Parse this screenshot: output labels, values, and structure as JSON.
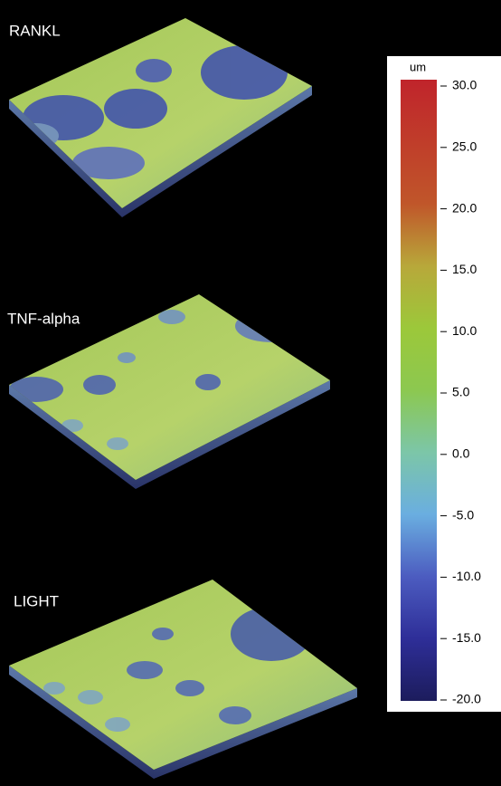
{
  "panels": [
    {
      "label": "RANKL"
    },
    {
      "label": "TNF-alpha"
    },
    {
      "label": "LIGHT"
    }
  ],
  "colorbar": {
    "unit": "um",
    "lim": [
      -20,
      30
    ],
    "ticks": [
      {
        "value": 30,
        "label": "30.0"
      },
      {
        "value": 25,
        "label": "25.0"
      },
      {
        "value": 20,
        "label": "20.0"
      },
      {
        "value": 15,
        "label": "15.0"
      },
      {
        "value": 10,
        "label": "10.0"
      },
      {
        "value": 5,
        "label": "5.0"
      },
      {
        "value": 0,
        "label": "0.0"
      },
      {
        "value": -5,
        "label": "-5.0"
      },
      {
        "value": -10,
        "label": "-10.0"
      },
      {
        "value": -15,
        "label": "-15.0"
      },
      {
        "value": -20,
        "label": "-20.0"
      }
    ]
  }
}
